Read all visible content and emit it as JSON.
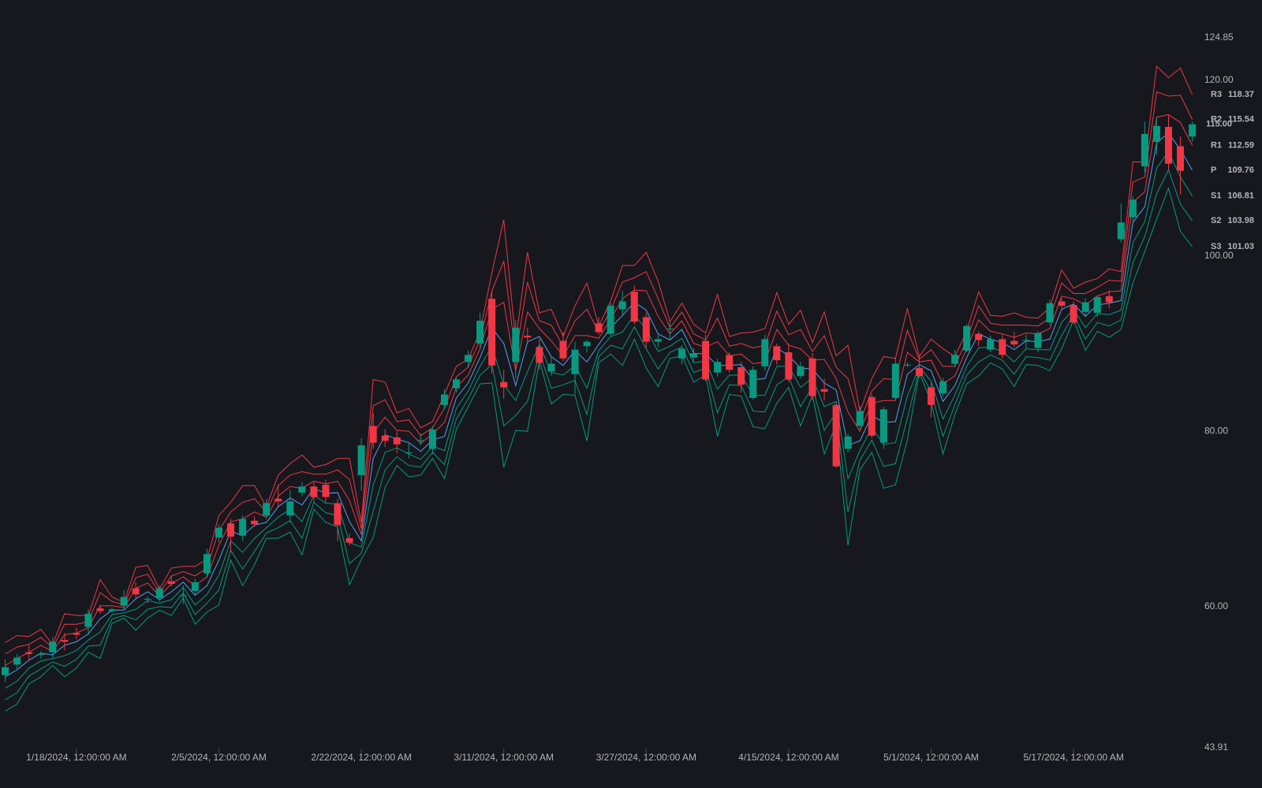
{
  "chart_data": {
    "type": "candlestick",
    "x": [
      null,
      null,
      null,
      null,
      null,
      null,
      "1/18/2024, 12:00:00 AM",
      null,
      null,
      null,
      null,
      null,
      null,
      null,
      null,
      null,
      null,
      null,
      "2/5/2024, 12:00:00 AM",
      null,
      null,
      null,
      null,
      null,
      null,
      null,
      null,
      null,
      null,
      null,
      "2/22/2024, 12:00:00 AM",
      null,
      null,
      null,
      null,
      null,
      null,
      null,
      null,
      null,
      null,
      null,
      "3/11/2024, 12:00:00 AM",
      null,
      null,
      null,
      null,
      null,
      null,
      null,
      null,
      null,
      null,
      null,
      "3/27/2024, 12:00:00 AM",
      null,
      null,
      null,
      null,
      null,
      null,
      null,
      null,
      null,
      null,
      null,
      "4/15/2024, 12:00:00 AM",
      null,
      null,
      null,
      null,
      null,
      null,
      null,
      null,
      null,
      null,
      null,
      "5/1/2024, 12:00:00 AM",
      null,
      null,
      null,
      null,
      null,
      null,
      null,
      null,
      null,
      null,
      null,
      "5/17/2024, 12:00:00 AM",
      null,
      null,
      null,
      null,
      null,
      null,
      null,
      null,
      null,
      null
    ],
    "candles": {
      "up_color": "#089981",
      "down_color": "#f23645",
      "open": [
        52.2,
        53.4,
        54.8,
        54.5,
        54.8,
        56.2,
        57.0,
        57.7,
        59.8,
        59.5,
        60.1,
        62.1,
        60.8,
        61.0,
        62.9,
        61.2,
        61.8,
        63.8,
        67.9,
        69.5,
        68.1,
        69.8,
        70.4,
        72.3,
        70.4,
        73.0,
        73.7,
        73.9,
        71.8,
        67.8,
        75.0,
        80.6,
        79.5,
        79.3,
        77.5,
        78.9,
        78.0,
        83.0,
        84.9,
        87.9,
        90.0,
        95.1,
        85.6,
        87.9,
        90.9,
        89.6,
        86.8,
        90.3,
        86.5,
        89.7,
        92.3,
        91.1,
        93.9,
        95.9,
        93.0,
        90.2,
        91.6,
        88.3,
        88.4,
        90.3,
        86.7,
        88.7,
        87.3,
        83.8,
        87.4,
        89.7,
        89.0,
        86.3,
        88.3,
        84.8,
        83.0,
        78.0,
        80.6,
        83.9,
        78.7,
        83.8,
        87.5,
        87.2,
        85.0,
        84.3,
        87.7,
        89.2,
        91.1,
        89.3,
        90.5,
        90.3,
        90.3,
        89.5,
        92.4,
        94.8,
        94.4,
        93.6,
        93.5,
        95.4,
        101.9,
        104.4,
        110.2,
        113.0,
        114.7,
        112.5,
        113.6
      ],
      "high": [
        54.0,
        54.6,
        55.6,
        54.9,
        56.6,
        57.0,
        57.6,
        59.7,
        60.2,
        59.9,
        61.9,
        62.8,
        61.2,
        62.4,
        63.5,
        62.4,
        63.2,
        66.6,
        69.4,
        70.0,
        70.4,
        70.3,
        72.3,
        73.9,
        73.3,
        74.2,
        74.2,
        74.5,
        72.3,
        68.3,
        79.2,
        82.0,
        80.2,
        80.0,
        78.6,
        79.7,
        80.6,
        84.8,
        86.2,
        89.2,
        93.5,
        96.0,
        87.0,
        92.7,
        91.8,
        90.6,
        88.5,
        91.3,
        90.2,
        90.4,
        93.0,
        94.6,
        96.0,
        96.6,
        93.5,
        91.0,
        92.5,
        89.8,
        89.5,
        91.0,
        88.3,
        89.0,
        87.9,
        87.4,
        91.0,
        90.0,
        90.0,
        87.9,
        88.9,
        86.0,
        83.3,
        79.7,
        82.9,
        84.2,
        82.8,
        88.4,
        87.9,
        88.4,
        85.5,
        86.1,
        89.3,
        92.2,
        91.4,
        90.9,
        91.0,
        91.3,
        91.0,
        91.4,
        95.0,
        95.2,
        94.8,
        95.2,
        95.5,
        96.1,
        106.0,
        106.8,
        115.3,
        115.7,
        116.0,
        113.6,
        115.3
      ],
      "low": [
        51.4,
        52.8,
        53.9,
        54.1,
        54.2,
        55.0,
        56.3,
        56.8,
        59.2,
        59.3,
        59.6,
        60.9,
        60.4,
        60.6,
        62.3,
        60.3,
        61.3,
        63.3,
        67.3,
        66.2,
        67.5,
        69.1,
        70.0,
        71.4,
        69.6,
        72.6,
        72.0,
        71.9,
        67.5,
        67.0,
        73.2,
        78.0,
        78.2,
        77.5,
        76.9,
        78.4,
        77.4,
        82.5,
        84.4,
        87.2,
        89.3,
        86.6,
        83.7,
        86.0,
        90.0,
        87.0,
        86.3,
        88.0,
        84.2,
        89.0,
        91.0,
        90.8,
        93.3,
        92.2,
        89.5,
        89.6,
        90.5,
        87.6,
        88.0,
        85.7,
        86.2,
        86.7,
        84.4,
        83.6,
        86.9,
        87.6,
        85.6,
        86.0,
        83.6,
        83.5,
        75.8,
        77.6,
        80.2,
        79.2,
        78.0,
        83.5,
        87.3,
        86.1,
        81.6,
        83.9,
        87.3,
        89.0,
        89.7,
        89.0,
        88.3,
        89.6,
        89.3,
        89.0,
        92.1,
        94.0,
        92.2,
        93.2,
        93.0,
        94.0,
        101.5,
        103.5,
        109.5,
        111.5,
        109.8,
        107.0,
        113.0
      ],
      "close": [
        53.1,
        54.2,
        54.6,
        54.6,
        56.0,
        56.0,
        56.8,
        59.2,
        59.5,
        59.7,
        61.1,
        61.4,
        60.9,
        62.1,
        62.6,
        61.3,
        62.8,
        66.0,
        69.0,
        68.0,
        70.0,
        69.4,
        71.8,
        72.0,
        72.0,
        73.7,
        72.5,
        72.5,
        69.3,
        67.3,
        78.4,
        78.7,
        78.9,
        78.5,
        77.6,
        79.0,
        80.2,
        84.2,
        85.9,
        88.7,
        92.6,
        87.5,
        85.0,
        91.8,
        90.7,
        87.8,
        87.7,
        88.3,
        89.3,
        90.2,
        91.3,
        94.3,
        94.8,
        92.5,
        90.2,
        90.5,
        91.7,
        89.4,
        88.9,
        85.9,
        87.9,
        87.0,
        85.3,
        87.0,
        90.5,
        88.1,
        85.9,
        87.4,
        84.0,
        84.5,
        76.0,
        79.4,
        82.3,
        79.5,
        82.5,
        87.7,
        87.6,
        86.3,
        83.0,
        85.7,
        88.7,
        92.0,
        90.4,
        90.5,
        88.7,
        89.9,
        90.4,
        91.2,
        94.6,
        94.3,
        92.4,
        94.7,
        95.3,
        94.7,
        103.8,
        106.4,
        113.9,
        114.8,
        110.5,
        109.7,
        115.0
      ]
    },
    "last_close_label": "115.00",
    "series": [
      {
        "name": "R3",
        "color": "#f23645",
        "values": [
          55.9,
          56.7,
          56.6,
          57.4,
          55.7,
          59.2,
          59.0,
          59.0,
          63.1,
          61.1,
          60.5,
          64.5,
          64.7,
          62.0,
          64.4,
          64.6,
          64.6,
          65.4,
          70.4,
          71.9,
          73.8,
          73.8,
          71.4,
          75.0,
          76.3,
          77.3,
          75.9,
          76.2,
          76.9,
          76.9,
          69.6,
          85.9,
          85.6,
          82.1,
          82.6,
          80.4,
          81.1,
          84.2,
          87.4,
          88.2,
          91.4,
          98.1,
          104.1,
          90.3,
          100.4,
          93.5,
          93.9,
          90.8,
          94.3,
          96.9,
          92.0,
          94.8,
          98.9,
          98.9,
          100.4,
          97.1,
          92.5,
          94.6,
          92.2,
          91.2,
          95.6,
          90.8,
          91.2,
          91.3,
          91.7,
          95.8,
          92.2,
          93.8,
          90.1,
          93.6,
          88.6,
          89.8,
          82.2,
          86.0,
          88.5,
          88.3,
          94.0,
          88.5,
          90.5,
          89.4,
          88.5,
          91.4,
          95.9,
          93.2,
          93.1,
          93.5,
          93.0,
          92.9,
          94.1,
          98.4,
          96.3,
          97.0,
          97.4,
          98.5,
          98.2,
          110.7,
          110.7,
          121.6,
          120.3,
          121.4,
          118.37
        ]
      },
      {
        "name": "R2",
        "color": "#f23645",
        "values": [
          54.6,
          55.4,
          55.7,
          56.5,
          55.3,
          58.0,
          58.0,
          58.3,
          61.6,
          60.6,
          60.2,
          63.3,
          63.7,
          61.6,
          63.5,
          64.0,
          63.5,
          64.4,
          68.7,
          70.8,
          71.9,
          72.3,
          70.8,
          73.8,
          75.0,
          75.4,
          75.1,
          75.1,
          75.6,
          74.5,
          68.9,
          82.9,
          83.6,
          81.1,
          81.3,
          79.5,
          80.4,
          82.6,
          86.2,
          87.3,
          90.4,
          96.0,
          99.4,
          88.6,
          97.0,
          92.6,
          92.1,
          89.7,
          92.6,
          93.9,
          91.3,
          93.8,
          97.0,
          97.5,
          98.2,
          95.1,
          91.8,
          93.6,
          91.1,
          90.4,
          92.9,
          89.7,
          90.0,
          89.5,
          89.8,
          93.7,
          91.0,
          91.6,
          89.1,
          90.9,
          87.3,
          86.0,
          81.1,
          84.6,
          86.0,
          85.9,
          91.5,
          88.2,
          89.3,
          87.4,
          87.4,
          90.4,
          94.3,
          92.3,
          92.1,
          92.1,
          92.1,
          92.0,
          92.9,
          96.9,
          95.7,
          95.7,
          96.4,
          97.2,
          97.1,
          108.4,
          109.0,
          118.7,
          118.2,
          118.3,
          115.54
        ]
      },
      {
        "name": "R1",
        "color": "#f23645",
        "values": [
          53.3,
          54.1,
          54.8,
          55.6,
          54.9,
          56.8,
          57.0,
          57.6,
          60.1,
          60.1,
          59.9,
          62.1,
          62.7,
          61.2,
          62.6,
          63.4,
          62.4,
          63.4,
          67.0,
          69.7,
          70.0,
          70.8,
          70.2,
          72.6,
          73.7,
          73.5,
          74.3,
          74.0,
          74.3,
          72.1,
          68.2,
          79.9,
          81.6,
          80.1,
          80.0,
          78.6,
          79.7,
          81.0,
          85.0,
          86.4,
          89.4,
          93.9,
          94.7,
          86.9,
          93.6,
          91.7,
          90.3,
          88.6,
          90.9,
          90.9,
          90.6,
          92.8,
          95.1,
          96.1,
          96.0,
          93.1,
          91.1,
          92.6,
          90.0,
          89.6,
          90.2,
          88.6,
          88.8,
          87.7,
          87.9,
          91.6,
          89.8,
          89.4,
          88.1,
          88.2,
          86.0,
          82.2,
          80.0,
          83.2,
          83.5,
          83.5,
          89.0,
          87.9,
          88.1,
          85.4,
          86.3,
          89.4,
          92.7,
          91.4,
          91.1,
          90.7,
          91.2,
          91.1,
          91.7,
          95.4,
          95.1,
          94.4,
          95.4,
          95.9,
          96.0,
          106.1,
          107.3,
          115.8,
          116.1,
          115.2,
          112.59
        ]
      },
      {
        "name": "P",
        "color": "#5b9cf6",
        "values": [
          52.0,
          52.8,
          53.9,
          54.7,
          54.5,
          55.6,
          56.0,
          56.9,
          58.6,
          59.6,
          59.6,
          60.9,
          61.7,
          60.8,
          61.7,
          62.8,
          61.3,
          62.4,
          65.3,
          68.6,
          68.1,
          69.3,
          69.6,
          71.4,
          72.4,
          71.6,
          73.5,
          72.9,
          73.0,
          69.7,
          67.5,
          76.9,
          79.6,
          79.1,
          78.7,
          77.7,
          79.0,
          79.4,
          83.8,
          85.5,
          88.4,
          91.8,
          90.0,
          85.2,
          90.2,
          90.8,
          88.5,
          87.5,
          89.2,
          87.9,
          89.9,
          91.8,
          93.2,
          94.7,
          93.8,
          91.1,
          90.4,
          91.6,
          88.9,
          88.8,
          87.5,
          87.5,
          87.6,
          85.9,
          86.0,
          89.5,
          88.6,
          87.2,
          87.1,
          85.5,
          84.7,
          78.4,
          78.9,
          81.8,
          81.0,
          81.1,
          86.5,
          87.6,
          86.9,
          83.4,
          85.2,
          88.4,
          91.1,
          90.5,
          90.1,
          89.3,
          90.3,
          90.2,
          90.5,
          93.9,
          94.5,
          93.1,
          94.4,
          94.6,
          94.9,
          103.8,
          105.6,
          112.9,
          114.0,
          112.1,
          109.76
        ]
      },
      {
        "name": "S1",
        "color": "#089981",
        "values": [
          50.7,
          51.5,
          53.0,
          53.8,
          54.1,
          54.4,
          55.0,
          56.2,
          57.1,
          59.1,
          59.3,
          59.7,
          60.7,
          60.4,
          60.8,
          62.2,
          60.2,
          61.4,
          63.6,
          67.5,
          66.2,
          67.8,
          69.0,
          70.2,
          71.1,
          69.7,
          72.7,
          71.8,
          71.7,
          67.3,
          66.8,
          73.9,
          77.6,
          78.1,
          77.4,
          76.8,
          78.3,
          77.8,
          82.6,
          84.6,
          87.4,
          89.7,
          85.3,
          83.5,
          86.8,
          89.9,
          86.7,
          86.4,
          87.5,
          84.9,
          89.2,
          90.8,
          91.3,
          93.3,
          91.6,
          89.1,
          89.7,
          90.6,
          87.8,
          88.0,
          84.8,
          86.4,
          86.4,
          84.1,
          84.1,
          87.4,
          87.4,
          85.0,
          86.1,
          82.8,
          83.4,
          74.6,
          77.8,
          80.4,
          78.5,
          78.7,
          84.0,
          87.3,
          85.7,
          81.4,
          84.1,
          87.4,
          89.5,
          89.6,
          89.1,
          87.9,
          89.4,
          89.3,
          89.3,
          92.4,
          93.9,
          91.8,
          93.4,
          93.3,
          93.8,
          101.5,
          103.9,
          110.0,
          111.9,
          109.0,
          106.81
        ]
      },
      {
        "name": "S2",
        "color": "#089981",
        "values": [
          49.4,
          50.2,
          52.1,
          52.9,
          53.7,
          53.2,
          54.0,
          55.5,
          55.6,
          58.6,
          59.0,
          58.5,
          59.7,
          60.0,
          59.9,
          61.6,
          59.1,
          60.4,
          61.9,
          66.4,
          64.3,
          66.3,
          68.4,
          69.0,
          69.8,
          67.8,
          71.9,
          70.7,
          70.4,
          64.9,
          66.1,
          70.9,
          75.6,
          77.1,
          76.1,
          75.9,
          77.6,
          76.2,
          81.4,
          83.7,
          86.4,
          87.6,
          80.6,
          81.8,
          83.4,
          89.0,
          84.9,
          85.3,
          85.8,
          81.9,
          88.5,
          89.8,
          89.4,
          91.9,
          89.4,
          87.1,
          89.0,
          89.6,
          86.7,
          87.2,
          82.1,
          85.3,
          85.2,
          82.3,
          82.2,
          85.3,
          86.2,
          82.8,
          85.1,
          80.1,
          82.1,
          70.8,
          76.7,
          79.0,
          76.0,
          76.3,
          81.5,
          87.0,
          84.5,
          79.4,
          83.0,
          86.4,
          87.9,
          88.7,
          88.1,
          86.5,
          88.5,
          88.4,
          88.1,
          90.9,
          93.3,
          90.5,
          92.4,
          92.0,
          92.7,
          99.2,
          102.2,
          107.1,
          109.8,
          105.9,
          103.98
        ]
      },
      {
        "name": "S3",
        "color": "#089981",
        "values": [
          48.1,
          48.9,
          51.2,
          52.0,
          53.3,
          52.0,
          53.0,
          54.8,
          54.1,
          58.1,
          58.7,
          57.3,
          58.7,
          59.6,
          59.0,
          61.0,
          58.0,
          59.4,
          60.2,
          65.3,
          62.4,
          64.8,
          67.8,
          67.8,
          68.5,
          65.9,
          71.1,
          69.6,
          69.1,
          62.5,
          65.4,
          67.9,
          73.6,
          76.1,
          74.8,
          75.0,
          76.9,
          74.6,
          80.2,
          82.8,
          85.4,
          85.5,
          75.9,
          80.1,
          80.0,
          88.1,
          83.1,
          84.2,
          84.1,
          78.9,
          87.8,
          88.8,
          87.5,
          90.5,
          87.2,
          85.1,
          88.3,
          88.6,
          85.6,
          86.4,
          79.4,
          84.2,
          84.0,
          80.5,
          80.3,
          83.2,
          85.0,
          80.6,
          84.1,
          77.4,
          80.8,
          67.0,
          75.6,
          77.6,
          73.5,
          73.9,
          79.0,
          86.7,
          83.3,
          77.4,
          81.9,
          85.4,
          86.3,
          87.8,
          87.1,
          85.1,
          87.6,
          87.5,
          86.9,
          89.4,
          92.7,
          89.2,
          91.4,
          90.7,
          91.6,
          96.9,
          100.5,
          104.2,
          107.7,
          102.8,
          101.03
        ]
      }
    ],
    "ylim": [
      43.91,
      124.85
    ],
    "yticks": [
      124.85,
      {
        "value": 120,
        "label": "120.00"
      },
      {
        "value": 100,
        "label": "100.00"
      },
      {
        "value": 80,
        "label": "80.00"
      },
      {
        "value": 60,
        "label": "60.00"
      },
      43.91
    ],
    "grid": false
  }
}
